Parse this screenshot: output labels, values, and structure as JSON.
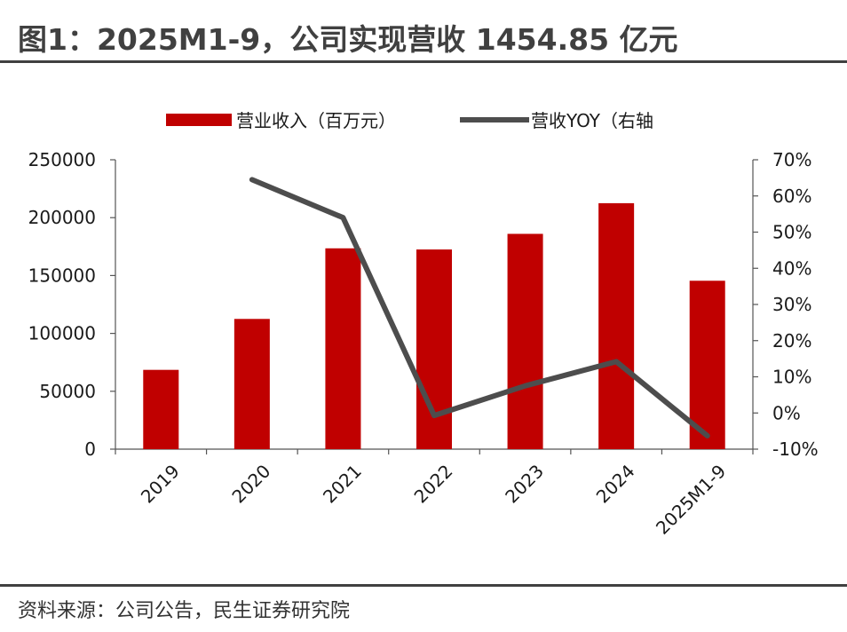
{
  "figure": {
    "title": "图1：2025M1-9，公司实现营收 1454.85 亿元",
    "source": "资料来源：公司公告，民生证券研究院"
  },
  "colors": {
    "bar": "#c00000",
    "line": "#4d4d4d",
    "rule": "#404040"
  },
  "chart_data": {
    "type": "bar+line",
    "categories": [
      "2019",
      "2020",
      "2021",
      "2022",
      "2023",
      "2024",
      "2025M1-9"
    ],
    "series": [
      {
        "name": "营业收入（百万元）",
        "type": "bar",
        "axis": "left",
        "values": [
          68500,
          112500,
          173500,
          172500,
          186000,
          212500,
          145485
        ]
      },
      {
        "name": "营收YOY（右轴",
        "type": "line",
        "axis": "right",
        "values": [
          null,
          0.645,
          0.54,
          -0.007,
          0.075,
          0.142,
          -0.063
        ]
      }
    ],
    "y_left": {
      "lim": [
        0,
        250000
      ],
      "ticks": [
        0,
        50000,
        100000,
        150000,
        200000,
        250000
      ],
      "tick_labels": [
        "0",
        "50000",
        "100000",
        "150000",
        "200000",
        "250000"
      ]
    },
    "y_right": {
      "lim": [
        -0.1,
        0.7
      ],
      "ticks": [
        -0.1,
        0,
        0.1,
        0.2,
        0.3,
        0.4,
        0.5,
        0.6,
        0.7
      ],
      "tick_labels": [
        "-10%",
        "0%",
        "10%",
        "20%",
        "30%",
        "40%",
        "50%",
        "60%",
        "70%"
      ]
    },
    "legend": "top-center",
    "grid": false
  }
}
